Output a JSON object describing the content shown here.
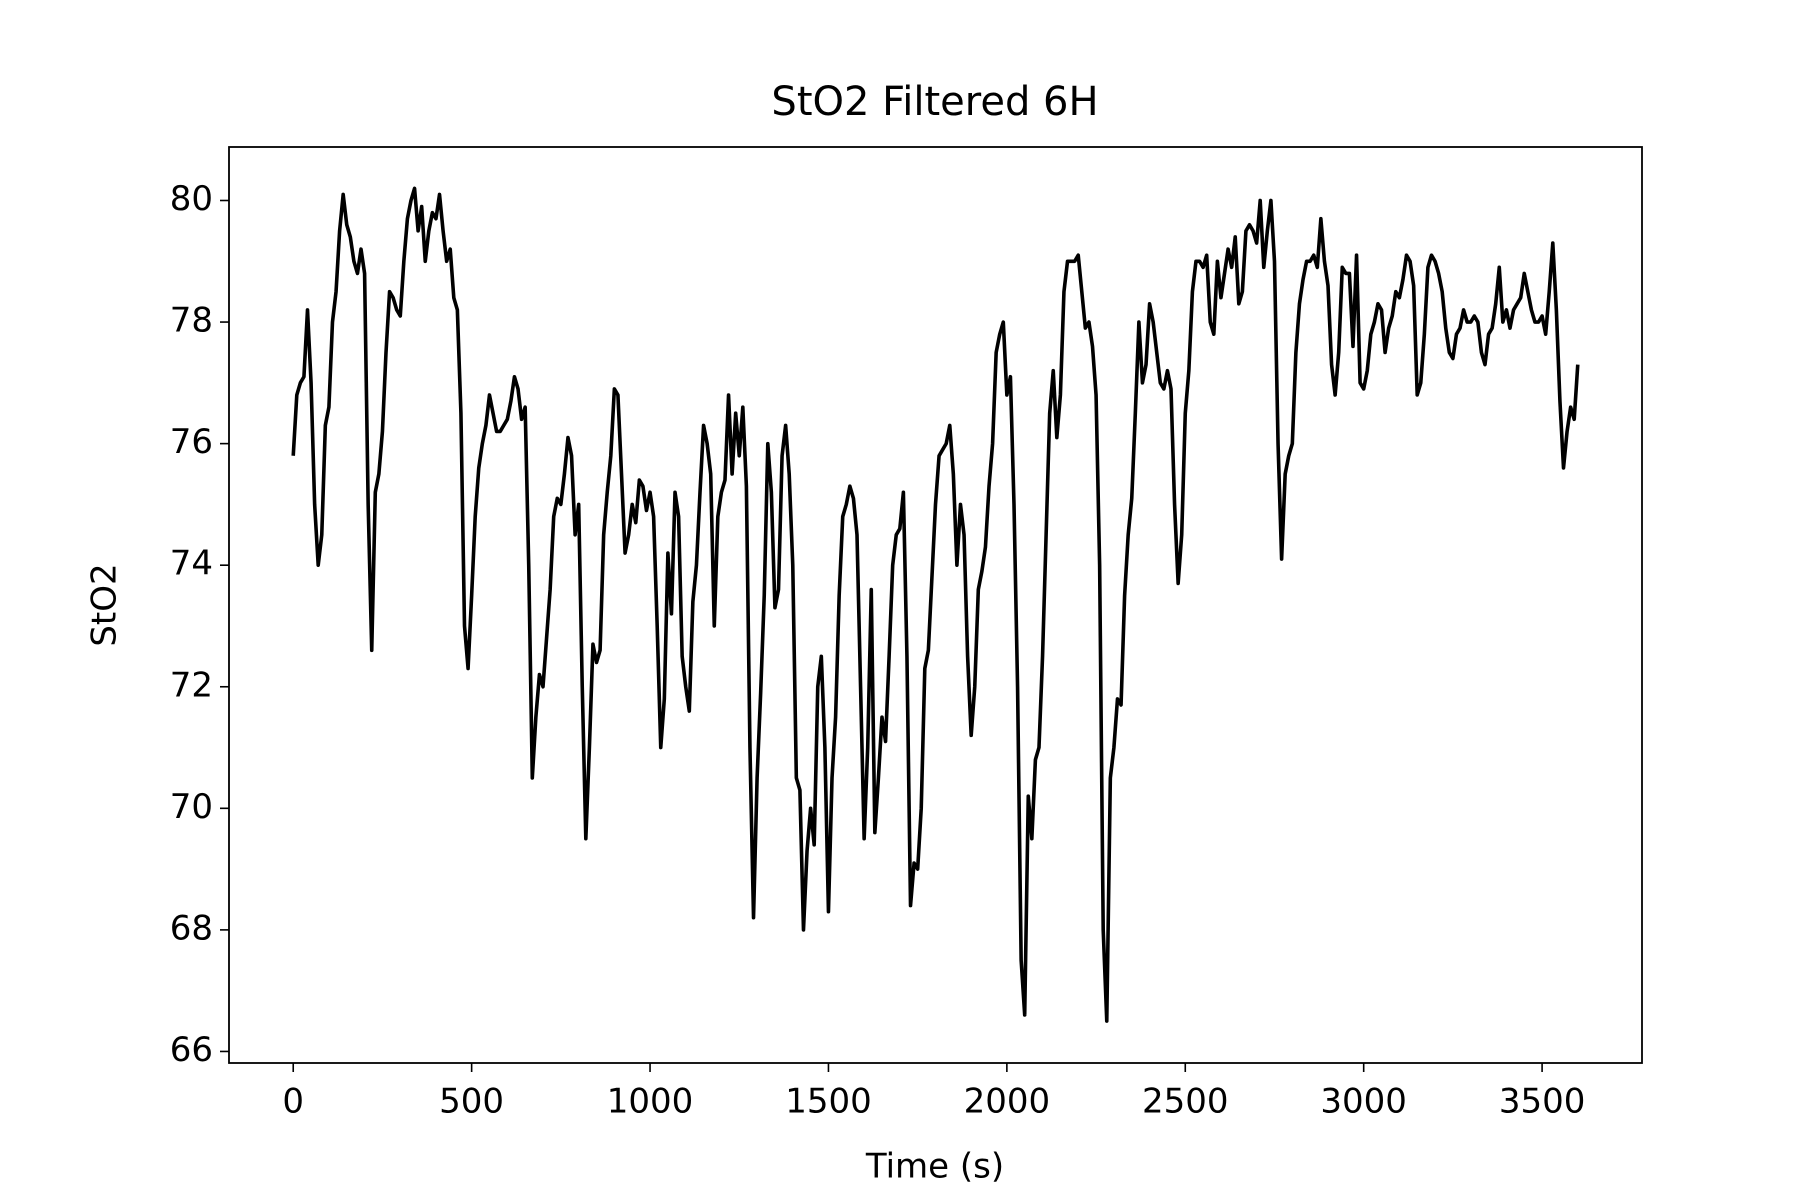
{
  "chart_data": {
    "type": "line",
    "title": "StO2 Filtered 6H",
    "x_label": "Time (s)",
    "y_label": "StO2",
    "xlim": [
      -180,
      3780
    ],
    "ylim": [
      65.81,
      80.88
    ],
    "xticks": [
      0,
      500,
      1000,
      1500,
      2000,
      2500,
      3000,
      3500
    ],
    "yticks": [
      66,
      68,
      70,
      72,
      74,
      76,
      78,
      80
    ],
    "x": [
      0,
      10,
      20,
      30,
      40,
      50,
      60,
      70,
      80,
      90,
      100,
      110,
      120,
      130,
      140,
      150,
      160,
      170,
      180,
      190,
      200,
      210,
      220,
      230,
      240,
      250,
      260,
      270,
      280,
      290,
      300,
      310,
      320,
      330,
      340,
      350,
      360,
      370,
      380,
      390,
      400,
      410,
      420,
      430,
      440,
      450,
      460,
      470,
      480,
      490,
      500,
      510,
      520,
      530,
      540,
      550,
      560,
      570,
      580,
      590,
      600,
      610,
      620,
      630,
      640,
      650,
      660,
      670,
      680,
      690,
      700,
      710,
      720,
      730,
      740,
      750,
      760,
      770,
      780,
      790,
      800,
      810,
      820,
      830,
      840,
      850,
      860,
      870,
      880,
      890,
      900,
      910,
      920,
      930,
      940,
      950,
      960,
      970,
      980,
      990,
      1000,
      1010,
      1020,
      1030,
      1040,
      1050,
      1060,
      1070,
      1080,
      1090,
      1100,
      1110,
      1120,
      1130,
      1140,
      1150,
      1160,
      1170,
      1180,
      1190,
      1200,
      1210,
      1220,
      1230,
      1240,
      1250,
      1260,
      1270,
      1280,
      1290,
      1300,
      1310,
      1320,
      1330,
      1340,
      1350,
      1360,
      1370,
      1380,
      1390,
      1400,
      1410,
      1420,
      1430,
      1440,
      1450,
      1460,
      1470,
      1480,
      1490,
      1500,
      1510,
      1520,
      1530,
      1540,
      1550,
      1560,
      1570,
      1580,
      1590,
      1600,
      1610,
      1620,
      1630,
      1640,
      1650,
      1660,
      1670,
      1680,
      1690,
      1700,
      1710,
      1720,
      1730,
      1740,
      1750,
      1760,
      1770,
      1780,
      1790,
      1800,
      1810,
      1820,
      1830,
      1840,
      1850,
      1860,
      1870,
      1880,
      1890,
      1900,
      1910,
      1920,
      1930,
      1940,
      1950,
      1960,
      1970,
      1980,
      1990,
      2000,
      2010,
      2020,
      2030,
      2040,
      2050,
      2060,
      2070,
      2080,
      2090,
      2100,
      2110,
      2120,
      2130,
      2140,
      2150,
      2160,
      2170,
      2180,
      2190,
      2200,
      2210,
      2220,
      2230,
      2240,
      2250,
      2260,
      2270,
      2280,
      2290,
      2300,
      2310,
      2320,
      2330,
      2340,
      2350,
      2360,
      2370,
      2380,
      2390,
      2400,
      2410,
      2420,
      2430,
      2440,
      2450,
      2460,
      2470,
      2480,
      2490,
      2500,
      2510,
      2520,
      2530,
      2540,
      2550,
      2560,
      2570,
      2580,
      2590,
      2600,
      2610,
      2620,
      2630,
      2640,
      2650,
      2660,
      2670,
      2680,
      2690,
      2700,
      2710,
      2720,
      2730,
      2740,
      2750,
      2760,
      2770,
      2780,
      2790,
      2800,
      2810,
      2820,
      2830,
      2840,
      2850,
      2860,
      2870,
      2880,
      2890,
      2900,
      2910,
      2920,
      2930,
      2940,
      2950,
      2960,
      2970,
      2980,
      2990,
      3000,
      3010,
      3020,
      3030,
      3040,
      3050,
      3060,
      3070,
      3080,
      3090,
      3100,
      3110,
      3120,
      3130,
      3140,
      3150,
      3160,
      3170,
      3180,
      3190,
      3200,
      3210,
      3220,
      3230,
      3240,
      3250,
      3260,
      3270,
      3280,
      3290,
      3300,
      3310,
      3320,
      3330,
      3340,
      3350,
      3360,
      3370,
      3380,
      3390,
      3400,
      3410,
      3420,
      3430,
      3440,
      3450,
      3460,
      3470,
      3480,
      3490,
      3500,
      3510,
      3520,
      3530,
      3540,
      3550,
      3560,
      3570,
      3580,
      3590,
      3600
    ],
    "series": [
      {
        "color": "#000000",
        "values": [
          75.8,
          76.8,
          77.0,
          77.1,
          78.2,
          77.0,
          75.0,
          74.0,
          74.5,
          76.3,
          76.6,
          78.0,
          78.5,
          79.5,
          80.1,
          79.6,
          79.4,
          79.0,
          78.8,
          79.2,
          78.8,
          75.0,
          72.6,
          75.2,
          75.5,
          76.2,
          77.5,
          78.5,
          78.4,
          78.2,
          78.1,
          79.0,
          79.7,
          80.0,
          80.2,
          79.5,
          79.9,
          79.0,
          79.5,
          79.8,
          79.7,
          80.1,
          79.5,
          79.0,
          79.2,
          78.4,
          78.2,
          76.5,
          73.0,
          72.3,
          73.5,
          74.8,
          75.6,
          76.0,
          76.3,
          76.8,
          76.5,
          76.2,
          76.2,
          76.3,
          76.4,
          76.7,
          77.1,
          76.9,
          76.4,
          76.6,
          74.0,
          70.5,
          71.5,
          72.2,
          72.0,
          72.8,
          73.6,
          74.8,
          75.1,
          75.0,
          75.5,
          76.1,
          75.8,
          74.5,
          75.0,
          72.0,
          69.5,
          71.0,
          72.7,
          72.4,
          72.6,
          74.5,
          75.2,
          75.8,
          76.9,
          76.8,
          75.5,
          74.2,
          74.5,
          75.0,
          74.7,
          75.4,
          75.3,
          74.9,
          75.2,
          74.8,
          73.0,
          71.0,
          71.8,
          74.2,
          73.2,
          75.2,
          74.8,
          72.5,
          72.0,
          71.6,
          73.4,
          74.0,
          75.2,
          76.3,
          76.0,
          75.5,
          73.0,
          74.8,
          75.2,
          75.4,
          76.8,
          75.5,
          76.5,
          75.8,
          76.6,
          75.3,
          71.0,
          68.2,
          70.5,
          71.9,
          73.5,
          76.0,
          75.2,
          73.3,
          73.6,
          75.8,
          76.3,
          75.5,
          74.0,
          70.5,
          70.3,
          68.0,
          69.3,
          70.0,
          69.4,
          72.0,
          72.5,
          71.0,
          68.3,
          70.5,
          71.5,
          73.5,
          74.8,
          75.0,
          75.3,
          75.1,
          74.5,
          72.0,
          69.5,
          71.0,
          73.6,
          69.6,
          70.5,
          71.5,
          71.1,
          72.5,
          74.0,
          74.5,
          74.6,
          75.2,
          72.5,
          68.4,
          69.1,
          69.0,
          70.0,
          72.3,
          72.6,
          73.8,
          75.0,
          75.8,
          75.9,
          76.0,
          76.3,
          75.5,
          74.0,
          75.0,
          74.5,
          72.5,
          71.2,
          72.0,
          73.6,
          73.9,
          74.3,
          75.3,
          76.0,
          77.5,
          77.8,
          78.0,
          76.8,
          77.1,
          75.0,
          72.0,
          67.5,
          66.6,
          70.2,
          69.5,
          70.8,
          71.0,
          72.5,
          74.5,
          76.5,
          77.2,
          76.1,
          76.8,
          78.5,
          79.0,
          79.0,
          79.0,
          79.1,
          78.5,
          77.9,
          78.0,
          77.6,
          76.8,
          74.0,
          68.0,
          66.5,
          70.5,
          71.0,
          71.8,
          71.7,
          73.5,
          74.5,
          75.1,
          76.5,
          78.0,
          77.0,
          77.3,
          78.3,
          78.0,
          77.5,
          77.0,
          76.9,
          77.2,
          76.9,
          75.0,
          73.7,
          74.5,
          76.5,
          77.2,
          78.5,
          79.0,
          79.0,
          78.9,
          79.1,
          78.0,
          77.8,
          79.0,
          78.4,
          78.8,
          79.2,
          78.9,
          79.4,
          78.3,
          78.5,
          79.5,
          79.6,
          79.5,
          79.3,
          80.0,
          78.9,
          79.5,
          80.0,
          79.0,
          76.0,
          74.1,
          75.5,
          75.8,
          76.0,
          77.5,
          78.3,
          78.7,
          79.0,
          79.0,
          79.1,
          78.9,
          79.7,
          79.0,
          78.6,
          77.3,
          76.8,
          77.5,
          78.9,
          78.8,
          78.8,
          77.6,
          79.1,
          77.0,
          76.9,
          77.2,
          77.8,
          78.0,
          78.3,
          78.2,
          77.5,
          77.9,
          78.1,
          78.5,
          78.4,
          78.7,
          79.1,
          79.0,
          78.6,
          76.8,
          77.0,
          77.8,
          78.9,
          79.1,
          79.0,
          78.8,
          78.5,
          77.9,
          77.5,
          77.4,
          77.8,
          77.9,
          78.2,
          78.0,
          78.0,
          78.1,
          78.0,
          77.5,
          77.3,
          77.8,
          77.9,
          78.3,
          78.9,
          78.0,
          78.2,
          77.9,
          78.2,
          78.3,
          78.4,
          78.8,
          78.5,
          78.2,
          78.0,
          78.0,
          78.1,
          77.8,
          78.5,
          79.3,
          78.2,
          76.7,
          75.6,
          76.2,
          76.6,
          76.4,
          77.3
        ]
      }
    ]
  }
}
